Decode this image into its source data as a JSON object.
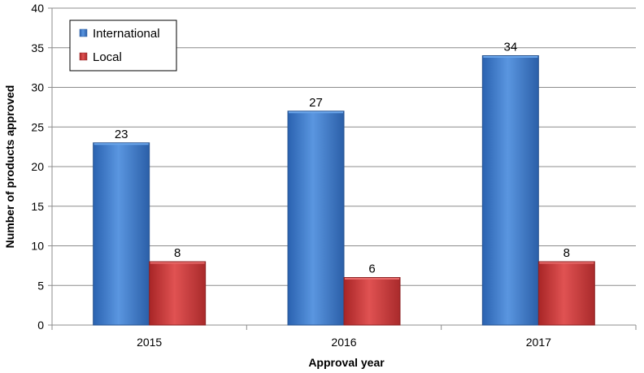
{
  "chart_data": {
    "type": "bar",
    "categories": [
      "2015",
      "2016",
      "2017"
    ],
    "series": [
      {
        "name": "International",
        "values": [
          23,
          27,
          34
        ],
        "color": "#3f7fd0"
      },
      {
        "name": "Local",
        "values": [
          8,
          6,
          8
        ],
        "color": "#c9393a"
      }
    ],
    "title": "",
    "xlabel": "Approval year",
    "ylabel": "Number of products approved",
    "ylim": [
      0,
      40
    ],
    "yticks": [
      0,
      5,
      10,
      15,
      20,
      25,
      30,
      35,
      40
    ],
    "grid": true,
    "legend": "top-left",
    "data_labels": true
  }
}
